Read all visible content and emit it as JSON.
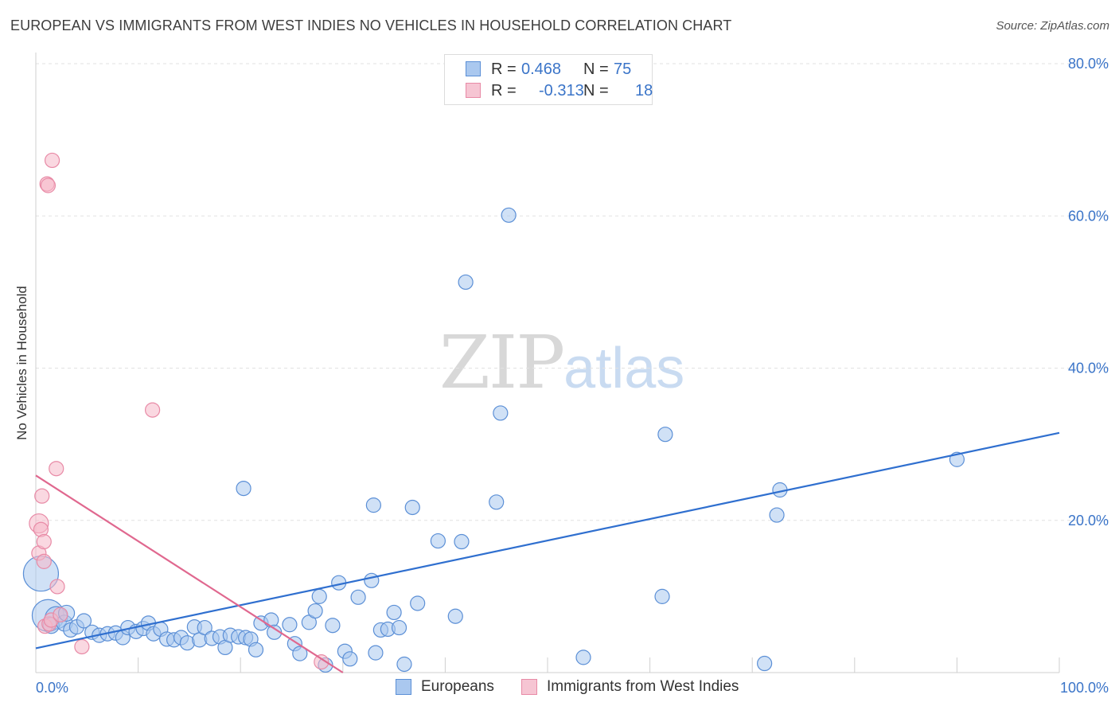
{
  "header": {
    "title": "EUROPEAN VS IMMIGRANTS FROM WEST INDIES NO VEHICLES IN HOUSEHOLD CORRELATION CHART",
    "source": "Source: ZipAtlas.com"
  },
  "watermark": {
    "part1": "ZIP",
    "part2": "atlas"
  },
  "legend": {
    "rows": [
      {
        "r_label": "R =",
        "r_value": "0.468",
        "n_label": "N =",
        "n_value": "75"
      },
      {
        "r_label": "R =",
        "r_value": "-0.313",
        "n_label": "N =",
        "n_value": "18"
      }
    ]
  },
  "bottom_legend": {
    "europeans": "Europeans",
    "immigrants": "Immigrants from West Indies"
  },
  "colors": {
    "blue_fill": "#aac8ef",
    "blue_stroke": "#5b8fd6",
    "blue_line": "#2f6fcf",
    "pink_fill": "#f6b8c9",
    "pink_stroke": "#e88aa6",
    "pink_line": "#e0688f",
    "tick_label": "#3a74c8",
    "grid": "#e2e2e2"
  },
  "chart_data": {
    "type": "scatter",
    "title": "EUROPEAN VS IMMIGRANTS FROM WEST INDIES NO VEHICLES IN HOUSEHOLD CORRELATION CHART",
    "xlabel": "",
    "ylabel": "No Vehicles in Household",
    "xlim": [
      0,
      100
    ],
    "ylim": [
      0,
      80
    ],
    "x_tick_labels": [
      "0.0%",
      "100.0%"
    ],
    "y_ticks": [
      20,
      40,
      60,
      80
    ],
    "y_tick_labels": [
      "20.0%",
      "40.0%",
      "60.0%",
      "80.0%"
    ],
    "grid": true,
    "legend_position": "top-center",
    "series": [
      {
        "name": "Europeans",
        "r": 0.468,
        "n": 75,
        "trend": {
          "x": [
            0,
            100
          ],
          "y": [
            3.2,
            31.5
          ]
        },
        "points": [
          {
            "x": 0.5,
            "y": 13.0,
            "s": 22
          },
          {
            "x": 1.2,
            "y": 7.5,
            "s": 20
          },
          {
            "x": 2.0,
            "y": 7.2,
            "s": 14
          },
          {
            "x": 1.5,
            "y": 6.2,
            "s": 10
          },
          {
            "x": 2.8,
            "y": 6.5,
            "s": 10
          },
          {
            "x": 3.4,
            "y": 5.6,
            "s": 9
          },
          {
            "x": 4.0,
            "y": 6.0,
            "s": 9
          },
          {
            "x": 4.7,
            "y": 6.8,
            "s": 9
          },
          {
            "x": 5.5,
            "y": 5.3,
            "s": 9
          },
          {
            "x": 6.2,
            "y": 4.9,
            "s": 9
          },
          {
            "x": 7.0,
            "y": 5.1,
            "s": 9
          },
          {
            "x": 7.8,
            "y": 5.2,
            "s": 9
          },
          {
            "x": 8.5,
            "y": 4.6,
            "s": 9
          },
          {
            "x": 9.0,
            "y": 5.9,
            "s": 9
          },
          {
            "x": 9.8,
            "y": 5.4,
            "s": 9
          },
          {
            "x": 10.5,
            "y": 5.8,
            "s": 9
          },
          {
            "x": 11.0,
            "y": 6.5,
            "s": 9
          },
          {
            "x": 11.5,
            "y": 5.1,
            "s": 9
          },
          {
            "x": 12.2,
            "y": 5.7,
            "s": 9
          },
          {
            "x": 12.8,
            "y": 4.4,
            "s": 9
          },
          {
            "x": 13.5,
            "y": 4.3,
            "s": 9
          },
          {
            "x": 14.2,
            "y": 4.6,
            "s": 9
          },
          {
            "x": 14.8,
            "y": 3.9,
            "s": 9
          },
          {
            "x": 15.5,
            "y": 6.0,
            "s": 9
          },
          {
            "x": 16.0,
            "y": 4.3,
            "s": 9
          },
          {
            "x": 16.5,
            "y": 5.9,
            "s": 9
          },
          {
            "x": 17.2,
            "y": 4.5,
            "s": 9
          },
          {
            "x": 18.0,
            "y": 4.7,
            "s": 9
          },
          {
            "x": 18.5,
            "y": 3.3,
            "s": 9
          },
          {
            "x": 19.0,
            "y": 4.9,
            "s": 9
          },
          {
            "x": 19.8,
            "y": 4.7,
            "s": 9
          },
          {
            "x": 20.5,
            "y": 4.6,
            "s": 9
          },
          {
            "x": 21.0,
            "y": 4.4,
            "s": 9
          },
          {
            "x": 21.5,
            "y": 3.0,
            "s": 9
          },
          {
            "x": 22.0,
            "y": 6.5,
            "s": 9
          },
          {
            "x": 23.0,
            "y": 6.9,
            "s": 9
          },
          {
            "x": 23.3,
            "y": 5.3,
            "s": 9
          },
          {
            "x": 24.8,
            "y": 6.3,
            "s": 9
          },
          {
            "x": 25.3,
            "y": 3.8,
            "s": 9
          },
          {
            "x": 25.8,
            "y": 2.5,
            "s": 9
          },
          {
            "x": 26.7,
            "y": 6.6,
            "s": 9
          },
          {
            "x": 27.3,
            "y": 8.1,
            "s": 9
          },
          {
            "x": 27.7,
            "y": 10.0,
            "s": 9
          },
          {
            "x": 28.3,
            "y": 1.0,
            "s": 9
          },
          {
            "x": 29.0,
            "y": 6.2,
            "s": 9
          },
          {
            "x": 29.6,
            "y": 11.8,
            "s": 9
          },
          {
            "x": 30.2,
            "y": 2.8,
            "s": 9
          },
          {
            "x": 30.7,
            "y": 1.8,
            "s": 9
          },
          {
            "x": 31.5,
            "y": 9.9,
            "s": 9
          },
          {
            "x": 32.8,
            "y": 12.1,
            "s": 9
          },
          {
            "x": 33.2,
            "y": 2.6,
            "s": 9
          },
          {
            "x": 33.7,
            "y": 5.6,
            "s": 9
          },
          {
            "x": 34.4,
            "y": 5.7,
            "s": 9
          },
          {
            "x": 35.0,
            "y": 7.9,
            "s": 9
          },
          {
            "x": 35.5,
            "y": 5.9,
            "s": 9
          },
          {
            "x": 36.0,
            "y": 1.1,
            "s": 9
          },
          {
            "x": 36.8,
            "y": 21.7,
            "s": 9
          },
          {
            "x": 37.3,
            "y": 9.1,
            "s": 9
          },
          {
            "x": 20.3,
            "y": 24.2,
            "s": 9
          },
          {
            "x": 33.0,
            "y": 22.0,
            "s": 9
          },
          {
            "x": 39.3,
            "y": 17.3,
            "s": 9
          },
          {
            "x": 41.6,
            "y": 17.2,
            "s": 9
          },
          {
            "x": 41.0,
            "y": 7.4,
            "s": 9
          },
          {
            "x": 45.4,
            "y": 34.1,
            "s": 9
          },
          {
            "x": 46.2,
            "y": 60.1,
            "s": 9
          },
          {
            "x": 42.0,
            "y": 51.3,
            "s": 9
          },
          {
            "x": 45.0,
            "y": 22.4,
            "s": 9
          },
          {
            "x": 53.5,
            "y": 2.0,
            "s": 9
          },
          {
            "x": 61.2,
            "y": 10.0,
            "s": 9
          },
          {
            "x": 61.5,
            "y": 31.3,
            "s": 9
          },
          {
            "x": 71.2,
            "y": 1.2,
            "s": 9
          },
          {
            "x": 72.7,
            "y": 24.0,
            "s": 9
          },
          {
            "x": 72.4,
            "y": 20.7,
            "s": 9
          },
          {
            "x": 90.0,
            "y": 28.0,
            "s": 9
          },
          {
            "x": 3.0,
            "y": 7.8,
            "s": 10
          }
        ]
      },
      {
        "name": "Immigrants from West Indies",
        "r": -0.313,
        "n": 18,
        "trend": {
          "x": [
            0,
            30
          ],
          "y": [
            25.9,
            0
          ]
        },
        "points": [
          {
            "x": 0.3,
            "y": 19.6,
            "s": 12
          },
          {
            "x": 0.5,
            "y": 18.8,
            "s": 9
          },
          {
            "x": 0.6,
            "y": 23.2,
            "s": 9
          },
          {
            "x": 0.3,
            "y": 15.7,
            "s": 9
          },
          {
            "x": 0.8,
            "y": 17.2,
            "s": 9
          },
          {
            "x": 0.8,
            "y": 14.6,
            "s": 9
          },
          {
            "x": 1.1,
            "y": 64.2,
            "s": 9
          },
          {
            "x": 1.6,
            "y": 67.3,
            "s": 9
          },
          {
            "x": 1.2,
            "y": 64.0,
            "s": 9
          },
          {
            "x": 2.0,
            "y": 26.8,
            "s": 9
          },
          {
            "x": 2.1,
            "y": 11.3,
            "s": 9
          },
          {
            "x": 0.9,
            "y": 6.1,
            "s": 9
          },
          {
            "x": 1.3,
            "y": 6.4,
            "s": 9
          },
          {
            "x": 1.5,
            "y": 6.9,
            "s": 9
          },
          {
            "x": 11.4,
            "y": 34.5,
            "s": 9
          },
          {
            "x": 4.5,
            "y": 3.4,
            "s": 9
          },
          {
            "x": 27.9,
            "y": 1.4,
            "s": 9
          },
          {
            "x": 2.4,
            "y": 7.6,
            "s": 9
          }
        ]
      }
    ]
  }
}
